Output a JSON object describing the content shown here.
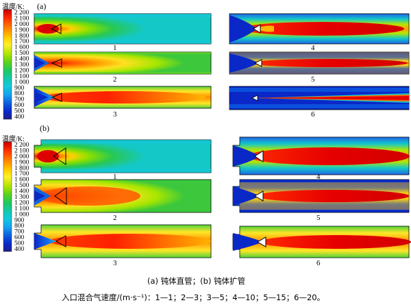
{
  "colorbar_title": "温度/K:",
  "panel_a": {
    "label": "(a)",
    "ticks": [
      "2 200",
      "2 100",
      "2 000",
      "1 900",
      "1 800",
      "1 700",
      "1 600",
      "1 500",
      "1 400",
      "1 300",
      "1 200",
      "1 100",
      "1 000",
      "900",
      "800",
      "700",
      "600",
      "500",
      "400"
    ]
  },
  "panel_b": {
    "label": "(b)",
    "ticks": [
      "2 200",
      "2 100",
      "2 000",
      "1 900",
      "1 800",
      "1 700",
      "1 600",
      "1 500",
      "1 400",
      "1 300",
      "1 200",
      "1 100",
      "1 000",
      "900",
      "800",
      "700",
      "600",
      "500",
      "400"
    ]
  },
  "case_labels": [
    "1",
    "2",
    "3",
    "4",
    "5",
    "6"
  ],
  "colormap": [
    "#c80000",
    "#ff1e00",
    "#ff5a00",
    "#ff9600",
    "#ffc800",
    "#ffef2a",
    "#dcf000",
    "#a6e600",
    "#6ed21e",
    "#3cc83c",
    "#1ec864",
    "#14c8a0",
    "#14d2d2",
    "#14aaf0",
    "#0a7ef0",
    "#0a50dc",
    "#0a28c8",
    "#141eaa",
    "#1e1e8c"
  ],
  "caption": {
    "line1": "(a)  钝体直管；(b)  钝体扩管",
    "line2": "入口混合气速度/(m·s⁻¹)：1—1；2—3；3—5；4—10；5—15；6—20。"
  }
}
